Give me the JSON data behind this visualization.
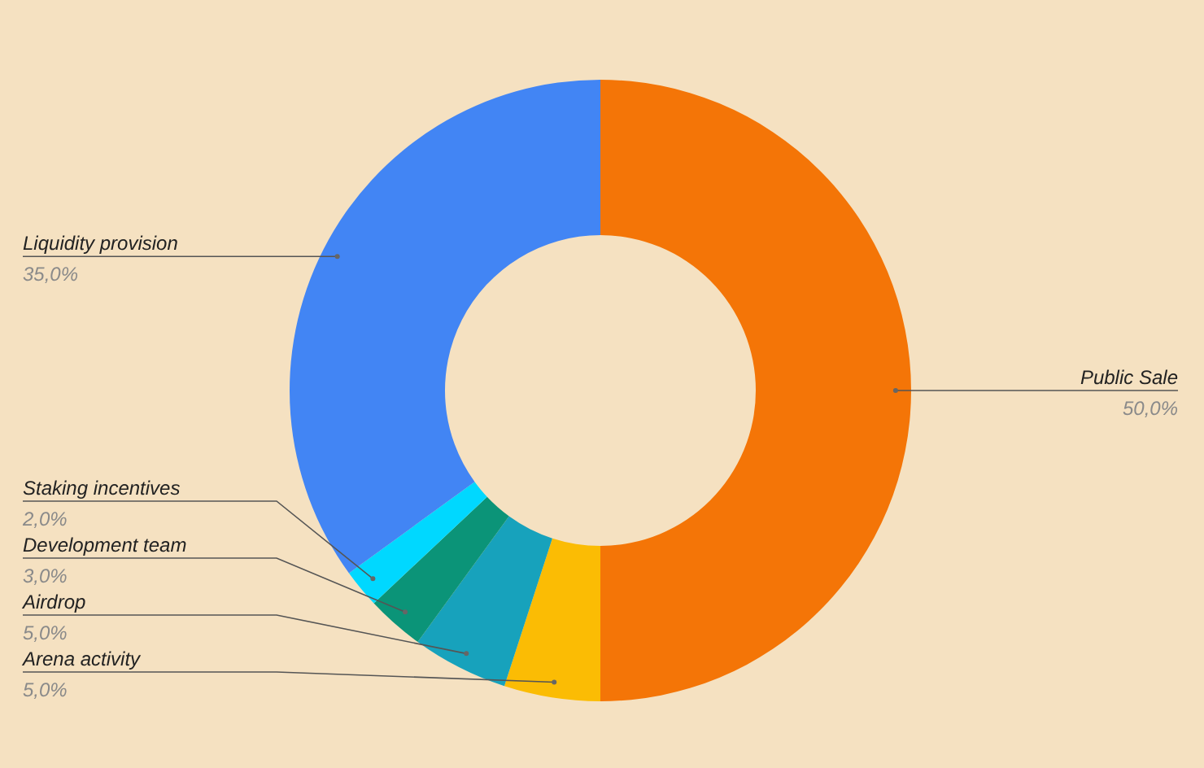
{
  "chart_data": {
    "type": "donut",
    "categories": [
      "Public Sale",
      "Arena activity",
      "Airdrop",
      "Development team",
      "Staking incentives",
      "Liquidity provision"
    ],
    "values": [
      50,
      5,
      5,
      3,
      2,
      35
    ],
    "value_labels": [
      "50,0%",
      "5,0%",
      "5,0%",
      "3,0%",
      "2,0%",
      "35,0%"
    ],
    "colors": [
      "#f47507",
      "#fbbc04",
      "#17a2bc",
      "#0b9478",
      "#00d8ff",
      "#4285f4"
    ],
    "legend": false
  }
}
